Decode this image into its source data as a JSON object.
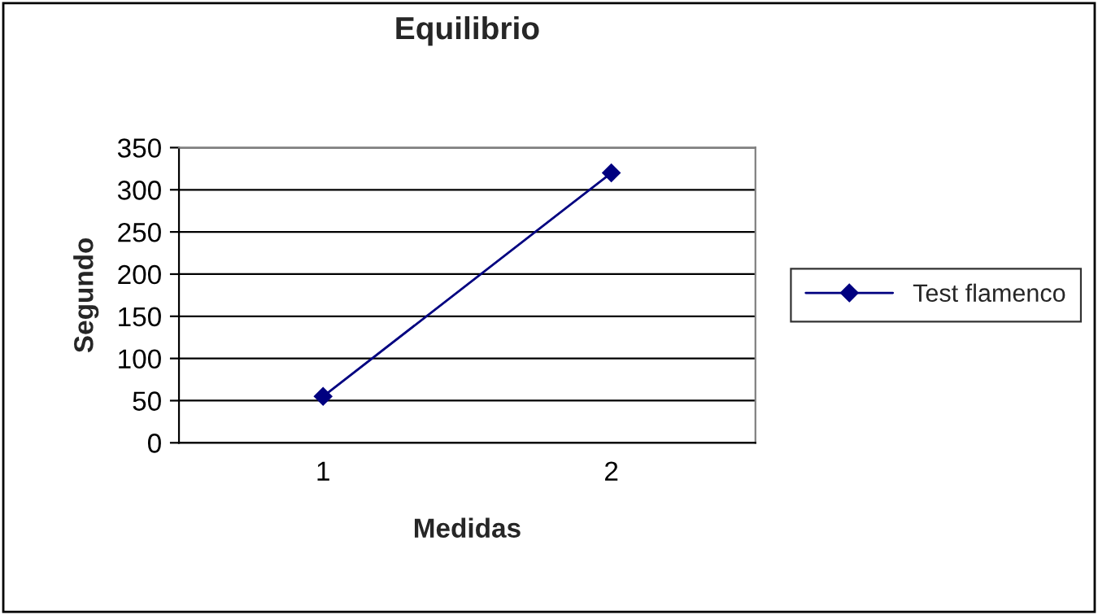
{
  "chart_data": {
    "type": "line",
    "title": "Equilibrio",
    "xlabel": "Medidas",
    "ylabel": "Segundo",
    "categories": [
      "1",
      "2"
    ],
    "series": [
      {
        "name": "Test flamenco",
        "color": "#000080",
        "values": [
          55,
          320
        ]
      }
    ],
    "ylim": [
      0,
      350
    ],
    "yticks": [
      0,
      50,
      100,
      150,
      200,
      250,
      300,
      350
    ],
    "grid": "y",
    "legend": "right",
    "marker": "diamond",
    "line_style": "solid"
  }
}
